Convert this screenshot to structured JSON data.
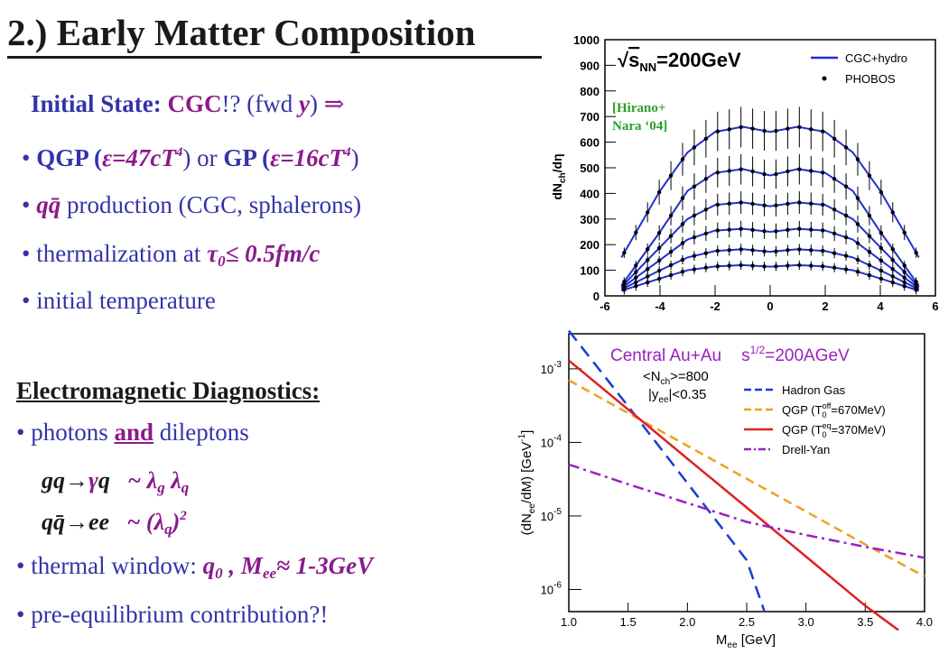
{
  "title": "2.) Early Matter Composition",
  "initial": {
    "label": "Initial State: ",
    "cgc": "CGC",
    "cgc_q": "!?  ",
    "fwd": "(fwd ",
    "y": "y",
    "close": ")   ",
    "arrow": "⇒"
  },
  "bullets": {
    "b1": {
      "qgp": "QGP (",
      "eps1": "ε",
      "eq1": "=47cT",
      "p1": "4",
      "or": ") or ",
      "gp": "GP (",
      "eps2": "ε",
      "eq2": "=16cT",
      "p2": "4",
      "close": ")"
    },
    "b2": {
      "qq": "qq̄",
      "rest": " production  (CGC, sphalerons)"
    },
    "b3": {
      "text": "thermalization at ",
      "tau": "τ",
      "zero": "0",
      "le": "≤ 0.5fm/c"
    },
    "b4": {
      "text": "initial  temperature"
    }
  },
  "em": {
    "heading": "Electromagnetic Diagnostics:",
    "b1": {
      "a": "photons ",
      "and": "and",
      "b": " dileptons"
    },
    "eq1": {
      "lhs": "gq→",
      "gamma": "γ",
      "q": "q",
      "sim": "   ~ ",
      "l1": "λ",
      "g": "g",
      "l2": " λ",
      "qs": "q"
    },
    "eq2": {
      "lhs": "qq̄→ee",
      "sim": "   ~ (",
      "l": "λ",
      "qs": "q",
      "close": ")",
      "pow": "2"
    },
    "b2": {
      "a": "thermal window: ",
      "q0": "q",
      "z": "0",
      "comma": " , M",
      "ee": "ee",
      "approx": "≈ 1-3GeV"
    },
    "b3": {
      "a": "pre-equilibrium  contribution?!"
    }
  },
  "top_plot": {
    "energy_pre": "√",
    "energy_s": "s",
    "energy_nn": "NN",
    "energy_val": "=200GeV",
    "legend": [
      "CGC+hydro",
      "PHOBOS"
    ],
    "annotation_1": "[Hirano+",
    "annotation_2": "Nara ‘04]",
    "ylabel_main": "dN",
    "ylabel_sub": "ch",
    "ylabel_tail": "/dη",
    "colors": {
      "curve": "#1f2fd0",
      "annot": "#2aa02a"
    }
  },
  "bottom_plot": {
    "title_1": "Central Au+Au",
    "title_2": "s",
    "title_pow": "1/2",
    "title_3": "=200AGeV",
    "nch": "<N",
    "nch_sub": "ch",
    "nch_val": ">=800",
    "yee": "|y",
    "yee_sub": "ee",
    "yee_val": "|<0.35",
    "legend": [
      {
        "name": "Hadron Gas",
        "color": "#1a3bd6"
      },
      {
        "name": "QGP (T",
        "sub": "0",
        "sup": "off",
        "tail": "=670MeV)",
        "color": "#f0a020"
      },
      {
        "name": "QGP (T",
        "sub": "0",
        "sup": "eq",
        "tail": "=370MeV)",
        "color": "#e02020"
      },
      {
        "name": "Drell-Yan",
        "color": "#9a20c0"
      }
    ],
    "ylabel": "(dN",
    "ylabel_sub": "ee",
    "ylabel_tail": "/dM) [GeV",
    "ylabel_pow": "-1",
    "ylabel_close": "]",
    "xlabel": "M",
    "xlabel_sub": "ee",
    "xlabel_tail": " [GeV]",
    "title_color": "#9a20c0"
  },
  "chart_data": [
    {
      "type": "line",
      "title": "",
      "xlabel": "",
      "ylabel": "dN_ch/dη",
      "xlim": [
        -6,
        6
      ],
      "ylim": [
        0,
        1000
      ],
      "xticks": [
        "-6",
        "-4",
        "-2",
        "0",
        "2",
        "4",
        "6"
      ],
      "yticks": [
        "0",
        "100",
        "200",
        "300",
        "400",
        "500",
        "600",
        "700",
        "800",
        "900",
        "1000"
      ],
      "series": [
        {
          "name": "CGC+hydro",
          "x": [
            -5.4,
            -4,
            -3,
            -2,
            -1,
            0,
            1,
            2,
            3,
            4,
            5.4
          ],
          "values": [
            150,
            410,
            560,
            640,
            660,
            640,
            660,
            640,
            560,
            410,
            150
          ]
        },
        {
          "x": [
            -5.4,
            -4,
            -3,
            -2,
            -1,
            0,
            1,
            2,
            3,
            4,
            5.4
          ],
          "values": [
            40,
            250,
            410,
            480,
            495,
            470,
            495,
            480,
            410,
            250,
            40
          ]
        },
        {
          "x": [
            -5.4,
            -4,
            -3,
            -2,
            -1,
            0,
            1,
            2,
            3,
            4,
            5.4
          ],
          "values": [
            35,
            190,
            300,
            355,
            365,
            350,
            365,
            355,
            300,
            190,
            35
          ]
        },
        {
          "x": [
            -5.4,
            -4,
            -3,
            -2,
            -1,
            0,
            1,
            2,
            3,
            4,
            5.4
          ],
          "values": [
            30,
            140,
            220,
            255,
            262,
            250,
            262,
            255,
            220,
            140,
            30
          ]
        },
        {
          "x": [
            -5.4,
            -4,
            -3,
            -2,
            -1,
            0,
            1,
            2,
            3,
            4,
            5.4
          ],
          "values": [
            25,
            100,
            150,
            175,
            182,
            172,
            182,
            175,
            150,
            100,
            25
          ]
        },
        {
          "x": [
            -5.4,
            -4,
            -3,
            -2,
            -1,
            0,
            1,
            2,
            3,
            4,
            5.4
          ],
          "values": [
            20,
            68,
            100,
            115,
            120,
            114,
            120,
            115,
            100,
            68,
            20
          ]
        },
        {
          "name": "PHOBOS",
          "x": [
            -5.4,
            -5,
            -4.5,
            -4,
            -3.5,
            -3,
            -2.5,
            -2,
            -1.5,
            -1,
            -0.5,
            0,
            0.5,
            1,
            1.5,
            2,
            2.5,
            3,
            3.5,
            4,
            4.5,
            5,
            5.4
          ],
          "values": [
            60,
            130,
            240,
            370,
            480,
            560,
            620,
            650,
            665,
            650,
            640,
            630,
            640,
            650,
            665,
            650,
            620,
            560,
            480,
            370,
            240,
            130,
            60
          ]
        }
      ]
    },
    {
      "type": "line",
      "title": "Central Au+Au  s^1/2=200AGeV",
      "xlabel": "M_ee [GeV]",
      "ylabel": "(dN_ee/dM) [GeV^-1]",
      "xlim": [
        1.0,
        4.0
      ],
      "ylim": [
        5e-07,
        0.003
      ],
      "yscale": "log",
      "xticks": [
        "1.0",
        "1.5",
        "2.0",
        "2.5",
        "3.0",
        "3.5",
        "4.0"
      ],
      "yticks": [
        "10^-6",
        "10^-5",
        "10^-4",
        "10^-3"
      ],
      "series": [
        {
          "name": "Hadron Gas",
          "x": [
            1.0,
            1.5,
            2.0,
            2.5,
            2.65
          ],
          "values": [
            0.0033,
            0.00031,
            2.8e-05,
            2.5e-06,
            5e-07
          ]
        },
        {
          "name": "QGP (T0off=670MeV)",
          "x": [
            1.0,
            1.5,
            2.0,
            2.5,
            3.0,
            3.5,
            4.0
          ],
          "values": [
            0.0007,
            0.00025,
            9e-05,
            3.2e-05,
            1.15e-05,
            4.1e-06,
            1.5e-06
          ]
        },
        {
          "name": "QGP (T0eq=370MeV)",
          "x": [
            1.0,
            1.5,
            2.0,
            2.5,
            3.0,
            3.5,
            3.78
          ],
          "values": [
            0.0013,
            0.00028,
            6e-05,
            1.3e-05,
            2.8e-06,
            6e-07,
            2.8e-07
          ]
        },
        {
          "name": "Drell-Yan",
          "x": [
            1.0,
            1.5,
            2.0,
            2.5,
            3.0,
            3.5,
            4.0
          ],
          "values": [
            5e-05,
            2.7e-05,
            1.5e-05,
            8.3e-06,
            5.5e-06,
            3.8e-06,
            2.7e-06
          ]
        }
      ]
    }
  ]
}
